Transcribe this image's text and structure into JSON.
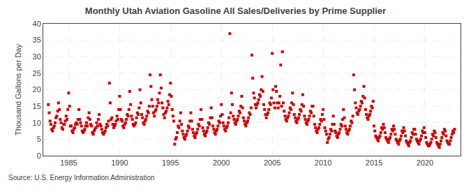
{
  "chart_data": {
    "type": "scatter",
    "title": "Monthly Utah Aviation Gasoline All Sales/Deliveries by Prime Supplier",
    "ylabel": "Thousand Gallons per Day",
    "annotations": [
      "Source: U.S. Energy Information Administration"
    ],
    "color": "#cc0000",
    "marker": "square",
    "grid": true,
    "xlim": [
      1982.5,
      2023.5
    ],
    "ylim": [
      0,
      40
    ],
    "xticks": [
      1985,
      1990,
      1995,
      2000,
      2005,
      2010,
      2015,
      2020
    ],
    "yticks": [
      0,
      5,
      10,
      15,
      20,
      25,
      30,
      35,
      40
    ],
    "x": [
      1983.0,
      1983.083,
      1983.167,
      1983.25,
      1983.333,
      1983.417,
      1983.5,
      1983.583,
      1983.667,
      1983.75,
      1983.833,
      1983.917,
      1984.0,
      1984.083,
      1984.167,
      1984.25,
      1984.333,
      1984.417,
      1984.5,
      1984.583,
      1984.667,
      1984.75,
      1984.833,
      1984.917,
      1985.0,
      1985.083,
      1985.167,
      1985.25,
      1985.333,
      1985.417,
      1985.5,
      1985.583,
      1985.667,
      1985.75,
      1985.833,
      1985.917,
      1986.0,
      1986.083,
      1986.167,
      1986.25,
      1986.333,
      1986.417,
      1986.5,
      1986.583,
      1986.667,
      1986.75,
      1986.833,
      1986.917,
      1987.0,
      1987.083,
      1987.167,
      1987.25,
      1987.333,
      1987.417,
      1987.5,
      1987.583,
      1987.667,
      1987.75,
      1987.833,
      1987.917,
      1988.0,
      1988.083,
      1988.167,
      1988.25,
      1988.333,
      1988.417,
      1988.5,
      1988.583,
      1988.667,
      1988.75,
      1988.833,
      1988.917,
      1989.0,
      1989.083,
      1989.167,
      1989.25,
      1989.333,
      1989.417,
      1989.5,
      1989.583,
      1989.667,
      1989.75,
      1989.833,
      1989.917,
      1990.0,
      1990.083,
      1990.167,
      1990.25,
      1990.333,
      1990.417,
      1990.5,
      1990.583,
      1990.667,
      1990.75,
      1990.833,
      1990.917,
      1991.0,
      1991.083,
      1991.167,
      1991.25,
      1991.333,
      1991.417,
      1991.5,
      1991.583,
      1991.667,
      1991.75,
      1991.833,
      1991.917,
      1992.0,
      1992.083,
      1992.167,
      1992.25,
      1992.333,
      1992.417,
      1992.5,
      1992.583,
      1992.667,
      1992.75,
      1992.833,
      1992.917,
      1993.0,
      1993.083,
      1993.167,
      1993.25,
      1993.333,
      1993.417,
      1993.5,
      1993.583,
      1993.667,
      1993.75,
      1993.833,
      1993.917,
      1994.0,
      1994.083,
      1994.167,
      1994.25,
      1994.333,
      1994.417,
      1994.5,
      1994.583,
      1994.667,
      1994.75,
      1994.833,
      1994.917,
      1995.0,
      1995.083,
      1995.167,
      1995.25,
      1995.333,
      1995.417,
      1995.5,
      1995.583,
      1995.667,
      1995.75,
      1995.833,
      1995.917,
      1996.0,
      1996.083,
      1996.167,
      1996.25,
      1996.333,
      1996.417,
      1996.5,
      1996.583,
      1996.667,
      1996.75,
      1996.833,
      1996.917,
      1997.0,
      1997.083,
      1997.167,
      1997.25,
      1997.333,
      1997.417,
      1997.5,
      1997.583,
      1997.667,
      1997.75,
      1997.833,
      1997.917,
      1998.0,
      1998.083,
      1998.167,
      1998.25,
      1998.333,
      1998.417,
      1998.5,
      1998.583,
      1998.667,
      1998.75,
      1998.833,
      1998.917,
      1999.0,
      1999.083,
      1999.167,
      1999.25,
      1999.333,
      1999.417,
      1999.5,
      1999.583,
      1999.667,
      1999.75,
      1999.833,
      1999.917,
      2000.0,
      2000.083,
      2000.167,
      2000.25,
      2000.333,
      2000.417,
      2000.5,
      2000.583,
      2000.667,
      2000.75,
      2000.833,
      2000.917,
      2001.0,
      2001.083,
      2001.167,
      2001.25,
      2001.333,
      2001.417,
      2001.5,
      2001.583,
      2001.667,
      2001.75,
      2001.833,
      2001.917,
      2002.0,
      2002.083,
      2002.167,
      2002.25,
      2002.333,
      2002.417,
      2002.5,
      2002.583,
      2002.667,
      2002.75,
      2002.833,
      2002.917,
      2003.0,
      2003.083,
      2003.167,
      2003.25,
      2003.333,
      2003.417,
      2003.5,
      2003.583,
      2003.667,
      2003.75,
      2003.833,
      2003.917,
      2004.0,
      2004.083,
      2004.167,
      2004.25,
      2004.333,
      2004.417,
      2004.5,
      2004.583,
      2004.667,
      2004.75,
      2004.833,
      2004.917,
      2005.0,
      2005.083,
      2005.167,
      2005.25,
      2005.333,
      2005.417,
      2005.5,
      2005.583,
      2005.667,
      2005.75,
      2005.833,
      2005.917,
      2006.0,
      2006.083,
      2006.167,
      2006.25,
      2006.333,
      2006.417,
      2006.5,
      2006.583,
      2006.667,
      2006.75,
      2006.833,
      2006.917,
      2007.0,
      2007.083,
      2007.167,
      2007.25,
      2007.333,
      2007.417,
      2007.5,
      2007.583,
      2007.667,
      2007.75,
      2007.833,
      2007.917,
      2008.0,
      2008.083,
      2008.167,
      2008.25,
      2008.333,
      2008.417,
      2008.5,
      2008.583,
      2008.667,
      2008.75,
      2008.833,
      2008.917,
      2009.0,
      2009.083,
      2009.167,
      2009.25,
      2009.333,
      2009.417,
      2009.5,
      2009.583,
      2009.667,
      2009.75,
      2009.833,
      2009.917,
      2010.0,
      2010.083,
      2010.167,
      2010.25,
      2010.333,
      2010.417,
      2010.5,
      2010.583,
      2010.667,
      2010.75,
      2010.833,
      2010.917,
      2011.0,
      2011.083,
      2011.167,
      2011.25,
      2011.333,
      2011.417,
      2011.5,
      2011.583,
      2011.667,
      2011.75,
      2011.833,
      2011.917,
      2012.0,
      2012.083,
      2012.167,
      2012.25,
      2012.333,
      2012.417,
      2012.5,
      2012.583,
      2012.667,
      2012.75,
      2012.833,
      2012.917,
      2013.0,
      2013.083,
      2013.167,
      2013.25,
      2013.333,
      2013.417,
      2013.5,
      2013.583,
      2013.667,
      2013.75,
      2013.833,
      2013.917,
      2014.0,
      2014.083,
      2014.167,
      2014.25,
      2014.333,
      2014.417,
      2014.5,
      2014.583,
      2014.667,
      2014.75,
      2014.833,
      2014.917,
      2015.0,
      2015.083,
      2015.167,
      2015.25,
      2015.333,
      2015.417,
      2015.5,
      2015.583,
      2015.667,
      2015.75,
      2015.833,
      2015.917,
      2016.0,
      2016.083,
      2016.167,
      2016.25,
      2016.333,
      2016.417,
      2016.5,
      2016.583,
      2016.667,
      2016.75,
      2016.833,
      2016.917,
      2017.0,
      2017.083,
      2017.167,
      2017.25,
      2017.333,
      2017.417,
      2017.5,
      2017.583,
      2017.667,
      2017.75,
      2017.833,
      2017.917,
      2018.0,
      2018.083,
      2018.167,
      2018.25,
      2018.333,
      2018.417,
      2018.5,
      2018.583,
      2018.667,
      2018.75,
      2018.833,
      2018.917,
      2019.0,
      2019.083,
      2019.167,
      2019.25,
      2019.333,
      2019.417,
      2019.5,
      2019.583,
      2019.667,
      2019.75,
      2019.833,
      2019.917,
      2020.0,
      2020.083,
      2020.167,
      2020.25,
      2020.333,
      2020.417,
      2020.5,
      2020.583,
      2020.667,
      2020.75,
      2020.833,
      2020.917,
      2021.0,
      2021.083,
      2021.167,
      2021.25,
      2021.333,
      2021.417,
      2021.5,
      2021.583,
      2021.667,
      2021.75,
      2021.833,
      2021.917,
      2022.0,
      2022.083,
      2022.167,
      2022.25,
      2022.333,
      2022.417,
      2022.5,
      2022.583,
      2022.667,
      2022.75,
      2022.833,
      2022.917
    ],
    "values": [
      15.5,
      13.0,
      10.5,
      9.5,
      8.0,
      7.5,
      8.5,
      9.0,
      10.0,
      11.5,
      12.0,
      13.5,
      16.0,
      14.0,
      11.0,
      10.0,
      8.5,
      8.0,
      9.5,
      9.5,
      10.5,
      12.0,
      11.0,
      14.0,
      19.0,
      15.0,
      9.0,
      9.0,
      7.5,
      7.0,
      8.0,
      8.5,
      9.5,
      10.0,
      9.5,
      11.0,
      14.0,
      11.0,
      10.0,
      9.0,
      7.5,
      7.0,
      7.5,
      8.0,
      9.0,
      10.0,
      9.0,
      11.5,
      13.0,
      11.0,
      9.5,
      9.0,
      7.0,
      6.5,
      7.5,
      8.0,
      8.5,
      10.0,
      9.0,
      11.0,
      12.5,
      9.5,
      9.0,
      8.0,
      7.0,
      6.5,
      7.0,
      7.5,
      8.5,
      9.5,
      9.0,
      10.5,
      22.0,
      16.0,
      11.0,
      11.5,
      9.5,
      8.5,
      9.0,
      9.5,
      10.5,
      12.0,
      11.0,
      14.0,
      18.0,
      14.0,
      11.0,
      10.5,
      9.0,
      8.5,
      9.5,
      10.0,
      11.0,
      12.5,
      12.0,
      14.0,
      19.5,
      15.5,
      12.0,
      11.0,
      9.5,
      9.0,
      9.5,
      10.0,
      11.5,
      13.0,
      12.5,
      14.5,
      20.0,
      16.0,
      12.5,
      11.5,
      10.0,
      9.5,
      10.5,
      11.0,
      12.0,
      13.5,
      13.0,
      15.0,
      24.5,
      21.0,
      17.0,
      15.0,
      13.0,
      12.0,
      13.5,
      14.0,
      15.0,
      17.0,
      16.0,
      19.0,
      24.5,
      20.5,
      16.0,
      14.5,
      12.5,
      11.5,
      13.0,
      13.5,
      14.5,
      16.5,
      15.5,
      18.5,
      22.0,
      18.0,
      14.0,
      12.0,
      10.5,
      3.5,
      5.0,
      5.5,
      7.0,
      9.0,
      8.5,
      10.5,
      13.0,
      9.5,
      7.5,
      6.5,
      5.5,
      5.0,
      6.0,
      6.5,
      7.5,
      9.0,
      8.5,
      10.5,
      13.0,
      10.5,
      8.0,
      7.0,
      6.0,
      5.5,
      6.5,
      7.0,
      8.0,
      9.5,
      9.0,
      11.0,
      14.0,
      11.0,
      8.5,
      7.5,
      6.5,
      6.0,
      7.0,
      7.5,
      8.5,
      10.0,
      9.5,
      11.5,
      14.5,
      11.5,
      9.0,
      8.0,
      7.0,
      6.5,
      7.5,
      8.0,
      9.0,
      10.5,
      10.0,
      12.0,
      15.5,
      12.5,
      10.0,
      9.0,
      8.0,
      7.5,
      8.5,
      9.0,
      10.0,
      11.5,
      37.0,
      13.0,
      19.0,
      15.5,
      12.0,
      11.0,
      10.0,
      9.5,
      10.5,
      11.0,
      12.0,
      13.5,
      13.0,
      15.0,
      18.0,
      14.5,
      11.5,
      10.5,
      9.5,
      9.0,
      10.0,
      10.5,
      11.5,
      13.0,
      12.5,
      14.5,
      30.5,
      23.5,
      19.0,
      17.5,
      15.5,
      14.5,
      15.5,
      16.0,
      17.0,
      18.5,
      18.0,
      20.0,
      24.0,
      19.5,
      15.5,
      14.0,
      12.5,
      11.5,
      12.5,
      13.0,
      14.0,
      16.0,
      15.5,
      17.5,
      31.0,
      20.0,
      16.0,
      14.5,
      21.0,
      19.5,
      16.0,
      14.5,
      16.0,
      18.0,
      27.5,
      15.0,
      31.5,
      16.0,
      13.5,
      12.0,
      11.0,
      10.5,
      11.5,
      12.0,
      13.0,
      14.5,
      14.0,
      16.0,
      19.0,
      15.5,
      12.5,
      11.5,
      10.5,
      10.0,
      11.0,
      11.5,
      12.5,
      14.0,
      13.5,
      15.5,
      18.5,
      15.0,
      12.0,
      11.0,
      10.0,
      9.5,
      10.5,
      11.0,
      12.0,
      13.5,
      13.0,
      15.0,
      15.0,
      12.0,
      9.5,
      8.5,
      7.5,
      7.0,
      8.0,
      8.5,
      9.5,
      11.0,
      10.5,
      12.5,
      14.0,
      11.0,
      8.5,
      7.5,
      6.5,
      4.0,
      5.0,
      5.5,
      6.5,
      8.0,
      7.5,
      9.5,
      12.0,
      9.5,
      7.5,
      7.0,
      6.0,
      5.5,
      6.5,
      7.0,
      8.0,
      9.5,
      9.0,
      11.0,
      14.0,
      11.5,
      9.0,
      8.0,
      7.0,
      6.5,
      7.5,
      8.0,
      9.0,
      10.5,
      10.0,
      12.0,
      24.5,
      20.0,
      16.0,
      14.5,
      13.0,
      12.5,
      13.5,
      14.0,
      15.0,
      16.5,
      16.0,
      18.0,
      21.0,
      17.5,
      14.0,
      12.5,
      11.5,
      11.0,
      12.0,
      12.5,
      13.5,
      15.0,
      14.5,
      16.5,
      9.0,
      7.5,
      6.0,
      5.5,
      5.0,
      4.5,
      5.5,
      6.0,
      7.0,
      8.5,
      8.0,
      9.5,
      8.5,
      7.0,
      5.5,
      5.0,
      4.5,
      4.0,
      5.0,
      5.5,
      6.5,
      8.0,
      7.5,
      9.0,
      8.0,
      6.5,
      5.0,
      4.5,
      4.0,
      3.5,
      4.5,
      5.0,
      6.0,
      7.5,
      7.0,
      8.5,
      7.5,
      6.0,
      4.5,
      4.0,
      3.5,
      3.0,
      4.0,
      4.5,
      5.5,
      7.0,
      6.5,
      8.0,
      8.0,
      6.5,
      5.0,
      4.5,
      4.0,
      3.5,
      4.5,
      5.0,
      6.0,
      7.5,
      7.0,
      8.5,
      7.0,
      5.5,
      4.0,
      3.5,
      3.0,
      3.0,
      3.5,
      4.0,
      5.0,
      6.5,
      6.0,
      7.5,
      7.0,
      5.5,
      4.0,
      3.5,
      3.0,
      2.5,
      3.5,
      4.5,
      5.5,
      7.0,
      6.5,
      8.0,
      7.5,
      6.0,
      4.5,
      4.0,
      3.5,
      3.5,
      4.5,
      5.5,
      6.5,
      7.5,
      7.0,
      8.0
    ]
  }
}
